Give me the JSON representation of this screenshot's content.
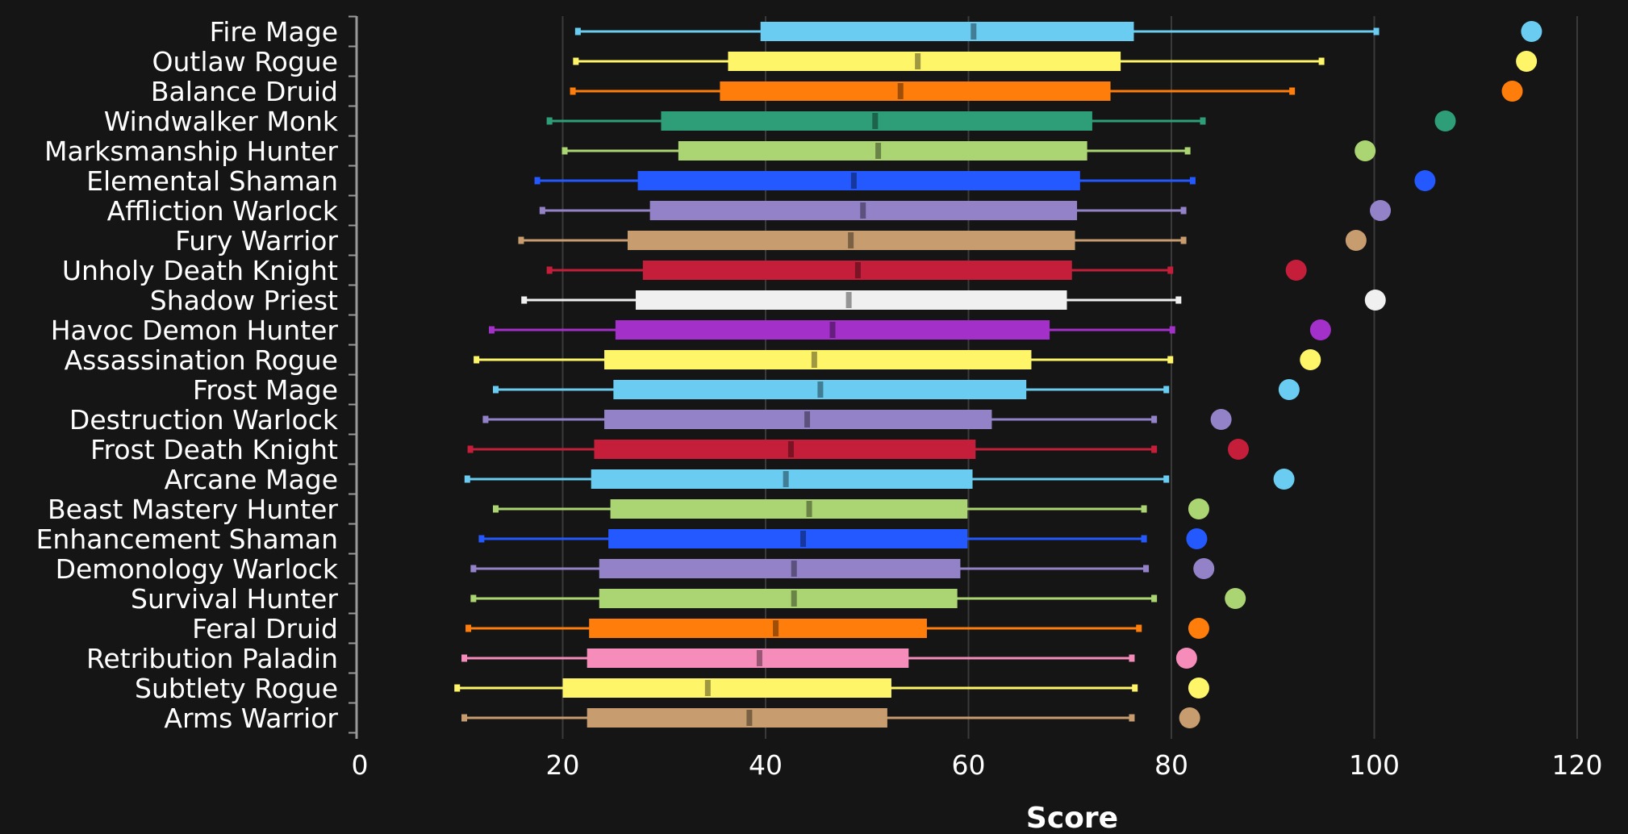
{
  "chart_data": {
    "type": "box",
    "xlabel": "Score",
    "title": "",
    "xlim": [
      0,
      120
    ],
    "xticks": [
      0,
      20,
      40,
      60,
      80,
      100,
      120
    ],
    "grid": "vertical",
    "legend": "none",
    "categories": [
      {
        "name": "Fire Mage",
        "color": "#69ccf0",
        "min": 21.5,
        "q1": 39.5,
        "median": 60.5,
        "q3": 76.3,
        "max": 100.2,
        "top": 115.5
      },
      {
        "name": "Outlaw Rogue",
        "color": "#fff569",
        "min": 21.3,
        "q1": 36.3,
        "median": 55.0,
        "q3": 75.0,
        "max": 94.8,
        "top": 115.0
      },
      {
        "name": "Balance Druid",
        "color": "#ff7d0a",
        "min": 21.0,
        "q1": 35.5,
        "median": 53.3,
        "q3": 74.0,
        "max": 91.9,
        "top": 113.6
      },
      {
        "name": "Windwalker Monk",
        "color": "#2e9e78",
        "min": 18.7,
        "q1": 29.7,
        "median": 50.8,
        "q3": 72.2,
        "max": 83.1,
        "top": 107.0
      },
      {
        "name": "Marksmanship Hunter",
        "color": "#abd473",
        "min": 20.2,
        "q1": 31.4,
        "median": 51.1,
        "q3": 71.7,
        "max": 81.6,
        "top": 99.1
      },
      {
        "name": "Elemental Shaman",
        "color": "#2459ff",
        "min": 17.5,
        "q1": 27.4,
        "median": 48.7,
        "q3": 71.0,
        "max": 82.1,
        "top": 105.0
      },
      {
        "name": "Affliction Warlock",
        "color": "#9482c9",
        "min": 18.0,
        "q1": 28.6,
        "median": 49.6,
        "q3": 70.7,
        "max": 81.2,
        "top": 100.6
      },
      {
        "name": "Fury Warrior",
        "color": "#c79c6e",
        "min": 15.9,
        "q1": 26.4,
        "median": 48.4,
        "q3": 70.5,
        "max": 81.2,
        "top": 98.2
      },
      {
        "name": "Unholy Death Knight",
        "color": "#c41e3a",
        "min": 18.7,
        "q1": 27.9,
        "median": 49.1,
        "q3": 70.2,
        "max": 79.9,
        "top": 92.3
      },
      {
        "name": "Shadow Priest",
        "color": "#f0f0f0",
        "min": 16.2,
        "q1": 27.2,
        "median": 48.2,
        "q3": 69.7,
        "max": 80.7,
        "top": 100.1
      },
      {
        "name": "Havoc Demon Hunter",
        "color": "#a330c9",
        "min": 13.0,
        "q1": 25.2,
        "median": 46.6,
        "q3": 68.0,
        "max": 80.1,
        "top": 94.7
      },
      {
        "name": "Assassination Rogue",
        "color": "#fff569",
        "min": 11.5,
        "q1": 24.1,
        "median": 44.8,
        "q3": 66.2,
        "max": 79.9,
        "top": 93.7
      },
      {
        "name": "Frost Mage",
        "color": "#69ccf0",
        "min": 13.4,
        "q1": 25.0,
        "median": 45.4,
        "q3": 65.7,
        "max": 79.5,
        "top": 91.6
      },
      {
        "name": "Destruction Warlock",
        "color": "#9482c9",
        "min": 12.4,
        "q1": 24.1,
        "median": 44.1,
        "q3": 62.3,
        "max": 78.3,
        "top": 84.9
      },
      {
        "name": "Frost Death Knight",
        "color": "#c41e3a",
        "min": 10.9,
        "q1": 23.1,
        "median": 42.5,
        "q3": 60.7,
        "max": 78.3,
        "top": 86.6
      },
      {
        "name": "Arcane Mage",
        "color": "#69ccf0",
        "min": 10.6,
        "q1": 22.8,
        "median": 42.0,
        "q3": 60.4,
        "max": 79.5,
        "top": 91.1
      },
      {
        "name": "Beast Mastery Hunter",
        "color": "#abd473",
        "min": 13.4,
        "q1": 24.7,
        "median": 44.3,
        "q3": 59.9,
        "max": 77.3,
        "top": 82.7
      },
      {
        "name": "Enhancement Shaman",
        "color": "#2459ff",
        "min": 12.0,
        "q1": 24.5,
        "median": 43.7,
        "q3": 59.9,
        "max": 77.3,
        "top": 82.5
      },
      {
        "name": "Demonology Warlock",
        "color": "#9482c9",
        "min": 11.2,
        "q1": 23.6,
        "median": 42.8,
        "q3": 59.2,
        "max": 77.5,
        "top": 83.2
      },
      {
        "name": "Survival Hunter",
        "color": "#abd473",
        "min": 11.2,
        "q1": 23.6,
        "median": 42.8,
        "q3": 58.9,
        "max": 78.3,
        "top": 86.3
      },
      {
        "name": "Feral Druid",
        "color": "#ff7d0a",
        "min": 10.7,
        "q1": 22.6,
        "median": 41.0,
        "q3": 55.9,
        "max": 76.8,
        "top": 82.7
      },
      {
        "name": "Retribution Paladin",
        "color": "#f58cba",
        "min": 10.3,
        "q1": 22.4,
        "median": 39.4,
        "q3": 54.1,
        "max": 76.1,
        "top": 81.5
      },
      {
        "name": "Subtlety Rogue",
        "color": "#fff569",
        "min": 9.6,
        "q1": 20.0,
        "median": 34.3,
        "q3": 52.4,
        "max": 76.4,
        "top": 82.7
      },
      {
        "name": "Arms Warrior",
        "color": "#c79c6e",
        "min": 10.3,
        "q1": 22.4,
        "median": 38.4,
        "q3": 52.0,
        "max": 76.1,
        "top": 81.8
      }
    ]
  },
  "colors": {
    "background": "#151515",
    "gridline": "#3a3a3a",
    "axis": "#9a9a9a",
    "text": "#ffffff"
  }
}
